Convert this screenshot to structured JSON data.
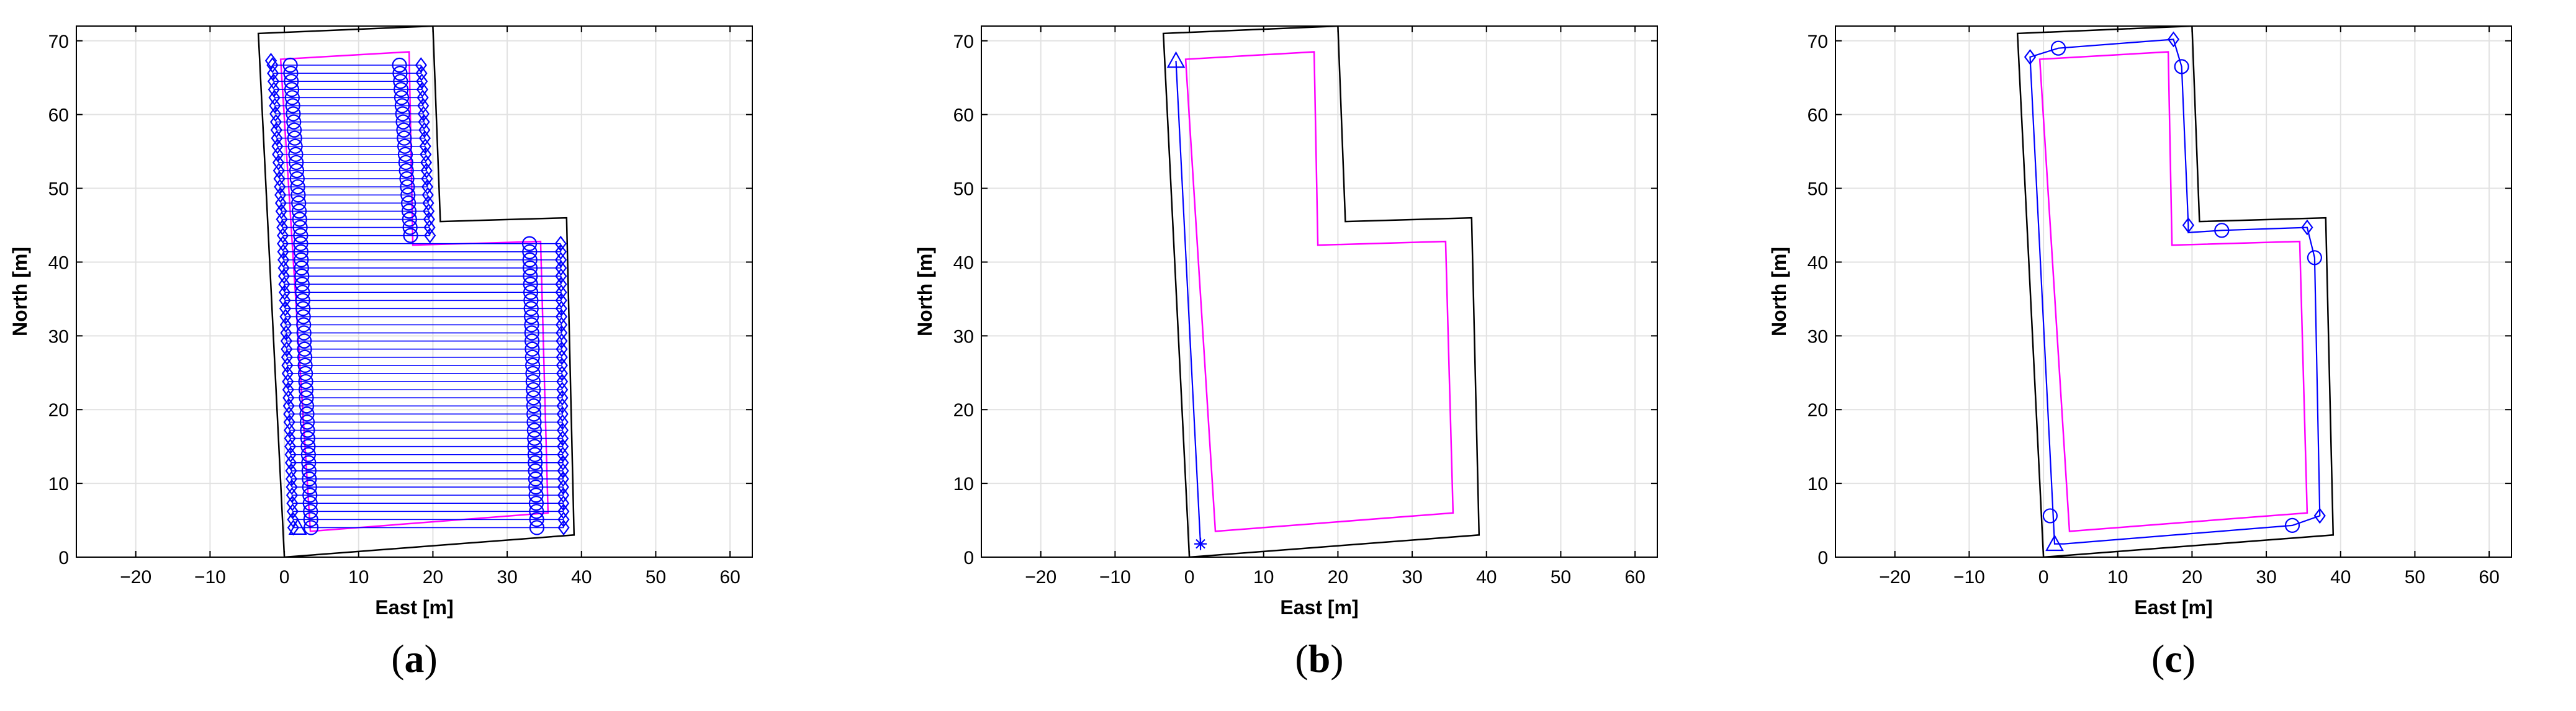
{
  "chart_data": [
    {
      "type": "line",
      "panel_label": "a",
      "xlabel": "East [m]",
      "ylabel": "North [m]",
      "xlim": [
        -28,
        63
      ],
      "ylim": [
        0,
        72
      ],
      "xticks": [
        -20,
        -10,
        0,
        10,
        20,
        30,
        40,
        50,
        60
      ],
      "yticks": [
        0,
        10,
        20,
        30,
        40,
        50,
        60,
        70
      ],
      "grid": true,
      "boundary": [
        [
          0,
          0
        ],
        [
          39,
          3
        ],
        [
          38,
          46
        ],
        [
          21,
          45.5
        ],
        [
          20,
          72
        ],
        [
          -3.5,
          71
        ]
      ],
      "offset_boundary": [
        [
          3.5,
          3.5
        ],
        [
          35.5,
          6
        ],
        [
          34.5,
          42.8
        ],
        [
          17.3,
          42.3
        ],
        [
          16.8,
          68.5
        ],
        [
          -0.5,
          67.5
        ]
      ],
      "path_band": {
        "lower": {
          "y_start": 4,
          "y_end": 42.5,
          "step": 1.1,
          "left_x": [
            1.2,
            -0.2
          ],
          "right_x": [
            37.6,
            37.2
          ],
          "right_circle_x": [
            34,
            33
          ]
        },
        "upper": {
          "y_start": 43.6,
          "y_end": 67.2,
          "step": 1.1,
          "left_x": [
            -0.2,
            -1.6
          ],
          "right_x": [
            19.6,
            18.4
          ],
          "right_circle_x": [
            17,
            15.5
          ]
        }
      },
      "markers": [
        {
          "shape": "triangle",
          "x": 1.8,
          "y": 4
        },
        {
          "shape": "diamond",
          "x": -1.8,
          "y": 67.3
        }
      ]
    },
    {
      "type": "line",
      "panel_label": "b",
      "xlabel": "East [m]",
      "ylabel": "North [m]",
      "xlim": [
        -28,
        63
      ],
      "ylim": [
        0,
        72
      ],
      "xticks": [
        -20,
        -10,
        0,
        10,
        20,
        30,
        40,
        50,
        60
      ],
      "yticks": [
        0,
        10,
        20,
        30,
        40,
        50,
        60,
        70
      ],
      "grid": true,
      "boundary": [
        [
          0,
          0
        ],
        [
          39,
          3
        ],
        [
          38,
          46
        ],
        [
          21,
          45.5
        ],
        [
          20,
          72
        ],
        [
          -3.5,
          71
        ]
      ],
      "offset_boundary": [
        [
          3.5,
          3.5
        ],
        [
          35.5,
          6
        ],
        [
          34.5,
          42.8
        ],
        [
          17.3,
          42.3
        ],
        [
          16.8,
          68.5
        ],
        [
          -0.5,
          67.5
        ]
      ],
      "path": [
        [
          1.5,
          1.8
        ],
        [
          -1.8,
          67.3
        ]
      ],
      "markers": [
        {
          "shape": "triangle",
          "x": -1.8,
          "y": 67.3
        },
        {
          "shape": "star",
          "x": 1.5,
          "y": 1.8
        }
      ]
    },
    {
      "type": "line",
      "panel_label": "c",
      "xlabel": "East [m]",
      "ylabel": "North [m]",
      "xlim": [
        -28,
        63
      ],
      "ylim": [
        0,
        72
      ],
      "xticks": [
        -20,
        -10,
        0,
        10,
        20,
        30,
        40,
        50,
        60
      ],
      "yticks": [
        0,
        10,
        20,
        30,
        40,
        50,
        60,
        70
      ],
      "grid": true,
      "boundary": [
        [
          0,
          0
        ],
        [
          39,
          3
        ],
        [
          38,
          46
        ],
        [
          21,
          45.5
        ],
        [
          20,
          72
        ],
        [
          -3.5,
          71
        ]
      ],
      "offset_boundary": [
        [
          3.5,
          3.5
        ],
        [
          35.5,
          6
        ],
        [
          34.5,
          42.8
        ],
        [
          17.3,
          42.3
        ],
        [
          16.8,
          68.5
        ],
        [
          -0.5,
          67.5
        ]
      ],
      "path": [
        [
          2.8,
          1.8
        ],
        [
          1.5,
          1.8
        ],
        [
          -1.8,
          67.8
        ],
        [
          2,
          69
        ],
        [
          17.5,
          70.2
        ],
        [
          18.6,
          66.5
        ],
        [
          19.5,
          45
        ],
        [
          19.5,
          44
        ],
        [
          24,
          44.3
        ],
        [
          35.5,
          44.7
        ],
        [
          36.5,
          40.6
        ],
        [
          37.2,
          5.6
        ],
        [
          33.5,
          4.3
        ],
        [
          2.8,
          1.8
        ]
      ],
      "path_circles": [
        [
          2,
          69
        ],
        [
          18.6,
          66.5
        ],
        [
          24,
          44.3
        ],
        [
          36.5,
          40.6
        ],
        [
          33.5,
          4.3
        ],
        [
          0.9,
          5.6
        ]
      ],
      "markers": [
        {
          "shape": "triangle",
          "x": 1.5,
          "y": 1.8
        },
        {
          "shape": "diamond",
          "x": -1.8,
          "y": 67.8
        },
        {
          "shape": "diamond",
          "x": 17.5,
          "y": 70.2
        },
        {
          "shape": "diamond",
          "x": 19.5,
          "y": 45
        },
        {
          "shape": "diamond",
          "x": 35.5,
          "y": 44.7
        },
        {
          "shape": "diamond",
          "x": 37.2,
          "y": 5.6
        }
      ]
    }
  ],
  "colors": {
    "boundary": "#000000",
    "offset_boundary": "#ff00ff",
    "path": "#0000ff",
    "grid": "#e2e2e2"
  }
}
